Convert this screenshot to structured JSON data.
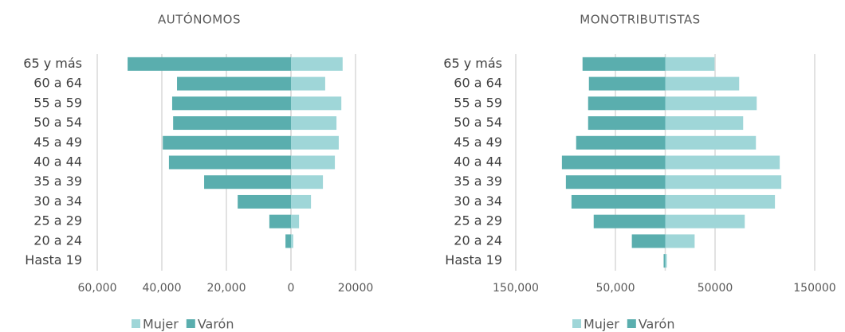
{
  "chart_data": [
    {
      "type": "bar",
      "orientation": "horizontal",
      "stacked": "diverging",
      "title": "AUTÓNOMOS",
      "categories": [
        "65 y más",
        "60 a 64",
        "55 a 59",
        "50 a 54",
        "45 a 49",
        "40 a 44",
        "35 a 39",
        "30 a 34",
        "25 a 29",
        "20 a 24",
        "Hasta 19"
      ],
      "series": [
        {
          "name": "Mujer",
          "color": "#9fd6d8",
          "values": [
            16000,
            10600,
            15600,
            14100,
            14800,
            13600,
            9900,
            6200,
            2500,
            700,
            0
          ]
        },
        {
          "name": "Varón",
          "color": "#5aaeae",
          "values": [
            -50600,
            -35300,
            -36800,
            -36500,
            -39700,
            -37800,
            -26900,
            -16500,
            -6700,
            -1700,
            0
          ]
        }
      ],
      "xlim": [
        -60000,
        20000
      ],
      "xticks": [
        {
          "value": -60000,
          "label": "60,000"
        },
        {
          "value": -40000,
          "label": "40,000"
        },
        {
          "value": -20000,
          "label": "20,000"
        },
        0,
        20000
      ],
      "grid": true,
      "legend": "bottom"
    },
    {
      "type": "bar",
      "orientation": "horizontal",
      "stacked": "diverging",
      "title": "MONOTRIBUTISTAS",
      "categories": [
        "65 y más",
        "60 a 64",
        "55 a 59",
        "50 a 54",
        "45 a 49",
        "40 a 44",
        "35 a 39",
        "30 a 34",
        "25 a 29",
        "20 a 24",
        "Hasta 19"
      ],
      "series": [
        {
          "name": "Mujer",
          "color": "#9fd6d8",
          "values": [
            49500,
            74200,
            91800,
            78200,
            91000,
            114900,
            116500,
            110100,
            79800,
            29500,
            1600
          ]
        },
        {
          "name": "Varón",
          "color": "#5aaeae",
          "values": [
            -83000,
            -76600,
            -77400,
            -77400,
            -89400,
            -103700,
            -99700,
            -94100,
            -71800,
            -33500,
            -1600
          ]
        }
      ],
      "xlim": [
        -150000,
        150000
      ],
      "xticks": [
        {
          "value": -150000,
          "label": "150,000"
        },
        {
          "value": -50000,
          "label": "50,000"
        },
        50000,
        150000
      ],
      "grid": true,
      "legend": "bottom"
    }
  ]
}
